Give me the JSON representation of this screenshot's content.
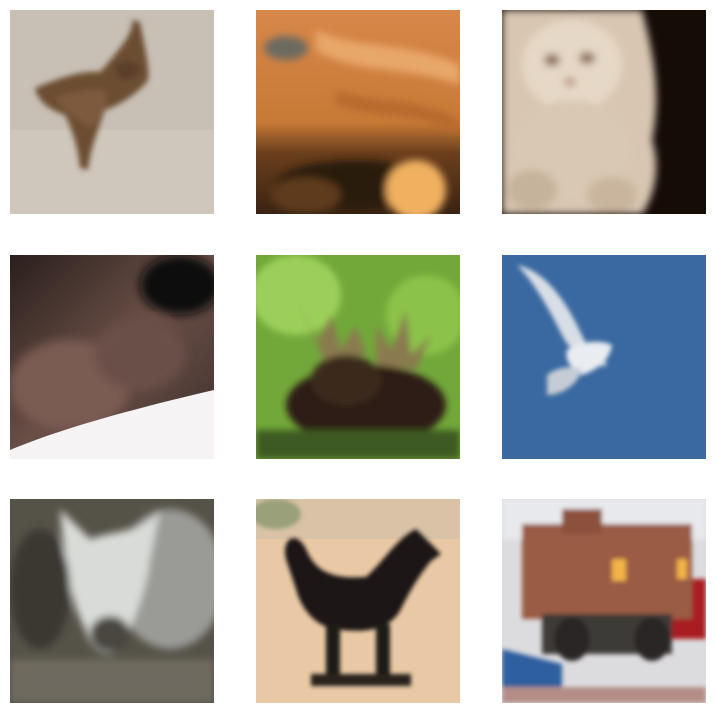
{
  "grid": {
    "rows": 3,
    "columns": 3,
    "tiles": [
      {
        "subject": "frog",
        "background": "#c9c1b6"
      },
      {
        "subject": "cat-closeup",
        "background": "#c9782d"
      },
      {
        "subject": "white-cat",
        "background": "#1a0f0b"
      },
      {
        "subject": "dark-object",
        "background": "#4b3a34"
      },
      {
        "subject": "moose",
        "background": "#6ea33a"
      },
      {
        "subject": "bird",
        "background": "#3c6aa0"
      },
      {
        "subject": "white-horse",
        "background": "#5a5a52"
      },
      {
        "subject": "dark-horse",
        "background": "#e6c7a4"
      },
      {
        "subject": "truck",
        "background": "#d9d9da"
      }
    ]
  }
}
